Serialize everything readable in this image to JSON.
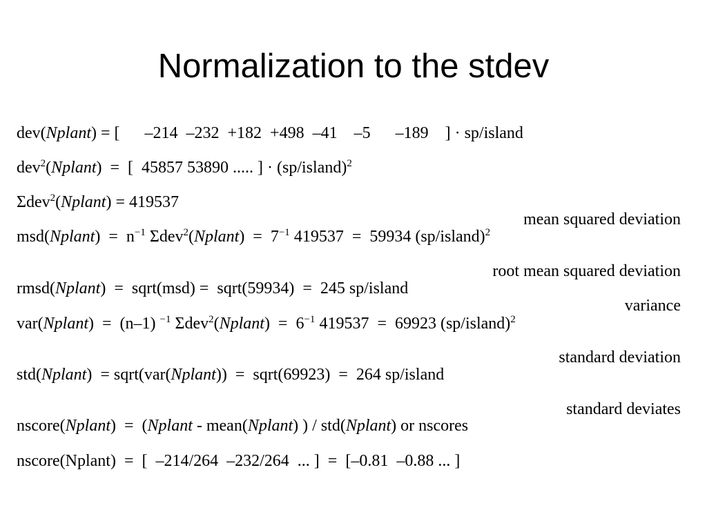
{
  "title": "Normalization to the stdev",
  "equations": [
    [
      "dev(",
      "Nplant",
      ") = [      –214  –232  +182  +498  –41    –5      –189    ] · sp/island"
    ],
    [
      "dev",
      "2",
      "(",
      "Nplant",
      ")  =  [  45857 53890 ..... ] · (sp/island)",
      "2"
    ],
    [
      "Σdev",
      "2",
      "(",
      "Nplant",
      ") = 419537"
    ],
    [
      "msd(",
      "Nplant",
      ")  =  n",
      "−1",
      " Σdev",
      "2",
      "(",
      "Nplant",
      ")  =  7",
      "−1",
      " 419537  =  59934 (sp/island)",
      "2"
    ],
    [
      "rmsd(",
      "Nplant",
      ")  =  sqrt(msd) =  sqrt(59934)  =  245 sp/island"
    ],
    [
      "var(",
      "Nplant",
      ")  =  (n–1) ",
      "−1",
      " Σdev",
      "2",
      "(",
      "Nplant",
      ")  =  6",
      "−1",
      " 419537  =  69923 (sp/island)",
      "2"
    ],
    [
      "std(",
      "Nplant",
      ")  = sqrt(var(",
      "Nplant",
      "))  =  sqrt(69923)  =  264 sp/island"
    ],
    [
      "nscore(",
      "Nplant",
      ")  =  (",
      "Nplant",
      " - mean(",
      "Nplant",
      ") ) / std(",
      "Nplant",
      ") or nscores"
    ],
    [
      "nscore(Nplant)  =  [  –214/264  –232/264  ... ]  =  [–0.81  –0.88 ... ]"
    ]
  ],
  "labels": [
    "mean squared deviation",
    "root mean squared deviation",
    "variance",
    "standard deviation",
    "standard deviates"
  ]
}
